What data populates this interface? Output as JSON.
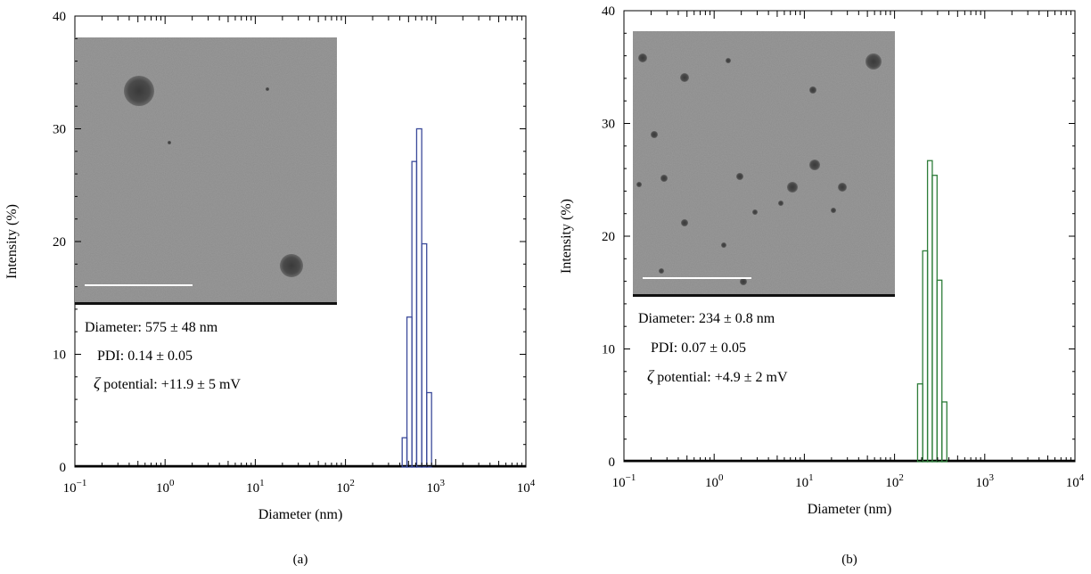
{
  "chart_data": [
    {
      "type": "bar",
      "panel_label": "(a)",
      "xlabel": "Diameter (nm)",
      "ylabel": "Intensity (%)",
      "xscale": "log",
      "xlim": [
        0.1,
        10000
      ],
      "ylim": [
        0,
        40
      ],
      "yticks": [
        0,
        10,
        20,
        30,
        40
      ],
      "xticks": [
        {
          "base": "10",
          "exp": "−1"
        },
        {
          "base": "10",
          "exp": "0"
        },
        {
          "base": "10",
          "exp": "1"
        },
        {
          "base": "10",
          "exp": "2"
        },
        {
          "base": "10",
          "exp": "3"
        },
        {
          "base": "10",
          "exp": "4"
        }
      ],
      "color": "#3b4a9a",
      "bins": [
        {
          "x0": 425,
          "x1": 480,
          "value": 2.6
        },
        {
          "x0": 480,
          "x1": 545,
          "value": 13.3
        },
        {
          "x0": 545,
          "x1": 615,
          "value": 27.1
        },
        {
          "x0": 615,
          "x1": 700,
          "value": 30.0
        },
        {
          "x0": 700,
          "x1": 795,
          "value": 19.8
        },
        {
          "x0": 795,
          "x1": 900,
          "value": 6.6
        }
      ],
      "inset_image": "TEM micrograph",
      "annotations": {
        "line1": "Diameter: 575 ± 48 nm",
        "line2": "PDI: 0.14 ± 0.05",
        "line3_symbol": "ζ",
        "line3": " potential: +11.9 ± 5 mV"
      }
    },
    {
      "type": "bar",
      "panel_label": "(b)",
      "xlabel": "Diameter (nm)",
      "ylabel": "Intensity (%)",
      "xscale": "log",
      "xlim": [
        0.1,
        10000
      ],
      "ylim": [
        0,
        40
      ],
      "yticks": [
        0,
        10,
        20,
        30,
        40
      ],
      "xticks": [
        {
          "base": "10",
          "exp": "−1"
        },
        {
          "base": "10",
          "exp": "0"
        },
        {
          "base": "10",
          "exp": "1"
        },
        {
          "base": "10",
          "exp": "2"
        },
        {
          "base": "10",
          "exp": "3"
        },
        {
          "base": "10",
          "exp": "4"
        }
      ],
      "color": "#2e7d3a",
      "bins": [
        {
          "x0": 180,
          "x1": 205,
          "value": 6.9
        },
        {
          "x0": 205,
          "x1": 232,
          "value": 18.7
        },
        {
          "x0": 232,
          "x1": 262,
          "value": 26.7
        },
        {
          "x0": 262,
          "x1": 296,
          "value": 25.4
        },
        {
          "x0": 296,
          "x1": 335,
          "value": 16.1
        },
        {
          "x0": 335,
          "x1": 380,
          "value": 5.3
        }
      ],
      "inset_image": "TEM micrograph",
      "annotations": {
        "line1": "Diameter: 234 ± 0.8 nm",
        "line2": "PDI: 0.07 ± 0.05",
        "line3_symbol": "ζ",
        "line3": " potential: +4.9 ± 2 mV"
      }
    }
  ]
}
